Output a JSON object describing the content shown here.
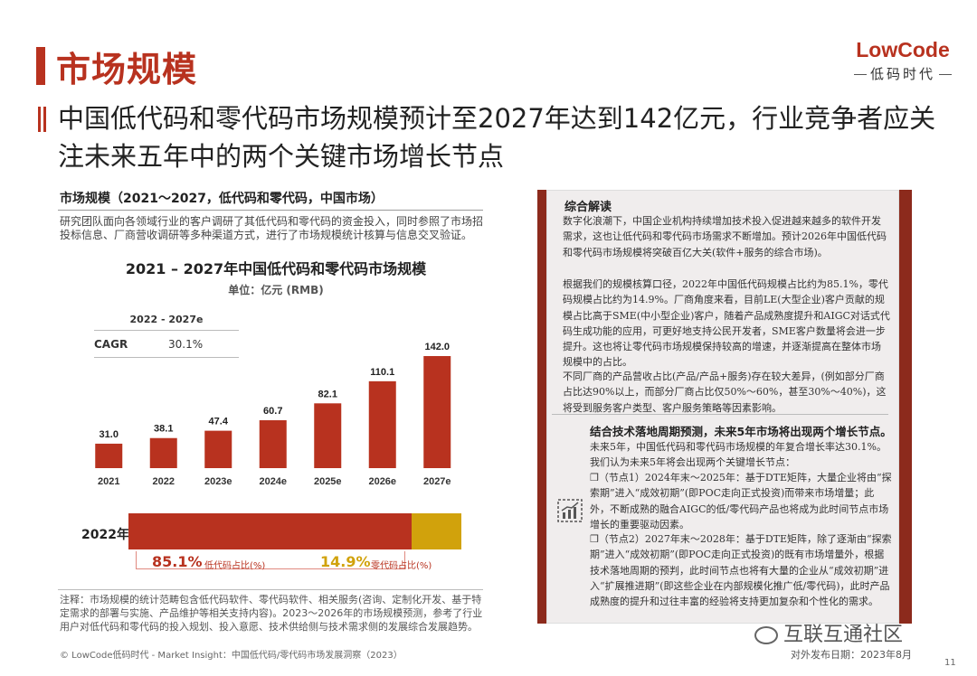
{
  "header": {
    "title": "市场规模",
    "subtitle": "中国低代码和零代码市场规模预计至2027年达到142亿元，行业竞争者应关注未来五年中的两个关键市场增长节点",
    "logo_en": "LowCode",
    "logo_cn": "低码时代"
  },
  "left_panel": {
    "title": "市场规模（2021～2027，低代码和零代码，中国市场）",
    "description": "研究团队面向各领域行业的客户调研了其低代码和零代码的资金投入，同时参照了市场招投标信息、厂商营收调研等多种渠道方式，进行了市场规模统计核算与信息交叉验证。",
    "cagr_period": "2022 - 2027e",
    "cagr_label": "CAGR",
    "cagr_value": "30.1%",
    "note": "注释：市场规模的统计范畴包含低代码软件、零代码软件、相关服务(咨询、定制化开发、基于特定需求的部署与实施、产品维护等相关支持内容)。2023～2026年的市场规模预测，参考了行业用户对低代码和零代码的投入规划、投入意愿、技术供给侧与技术需求侧的发展综合发展趋势。"
  },
  "chart_data": {
    "type": "bar",
    "title": "2021 – 2027年中国低代码和零代码市场规模",
    "subtitle": "单位：亿元 (RMB)",
    "categories": [
      "2021",
      "2022",
      "2023e",
      "2024e",
      "2025e",
      "2026e",
      "2027e"
    ],
    "values": [
      31.0,
      38.1,
      47.4,
      60.7,
      82.1,
      110.1,
      142.0
    ],
    "value_labels": [
      "31.0",
      "38.1",
      "47.4",
      "60.7",
      "82.1",
      "110.1",
      "142.0"
    ],
    "bar_color": "#b8321f"
  },
  "share": {
    "year": "2022年",
    "low_pct": "85.1%",
    "low_value": 85.1,
    "low_label": "低代码占比(%)",
    "zero_pct": "14.9%",
    "zero_value": 14.9,
    "zero_label": "零代码占比(%)",
    "low_color": "#b8321f",
    "zero_color": "#d1a20c"
  },
  "right_panel": {
    "title": "综合解读",
    "p1": "数字化浪潮下，中国企业机构持续增加技术投入促进越来越多的软件开发需求，这也让低代码和零代码市场需求不断增加。预计2026年中国低代码和零代码市场规模将突破百亿大关(软件+服务的综合市场)。",
    "p2": "根据我们的规模核算口径，2022年中国低代码规模占比约为85.1%，零代码规模占比约为14.9%。厂商角度来看，目前LE(大型企业)客户贡献的规模占比高于SME(中小型企业)客户，随着产品成熟度提升和AIGC对话式代码生成功能的应用，可更好地支持公民开发者，SME客户数量将会进一步提升。这也将让零代码市场规模保持较高的增速，并逐渐提高在整体市场规模中的占比。",
    "p3": "不同厂商的产品营收占比(产品/产品+服务)存在较大差异，(例如部分厂商占比达90%以上，而部分厂商占比仅50%～60%，甚至30%～40%)，这将受到服务客户类型、客户服务策略等因素影响。",
    "section_title": "结合技术落地周期预测，未来5年市场将出现两个增长节点。",
    "p4": "未来5年，中国低代码和零代码市场规模的年复合增长率达30.1%。我们认为未来5年将会出现两个关键增长节点：",
    "p5": "❒（节点1）2024年末～2025年：基于DTE矩阵，大量企业将由“探索期”进入“成效初期”(即POC走向正式投资)而带来市场增量；此外，不断成熟的融合AIGC的低/零代码产品也将成为此时间节点市场增长的重要驱动因素。",
    "p6": "❒（节点2）2027年末～2028年：基于DTE矩阵，除了逐渐由“探索期”进入“成效初期”(即POC走向正式投资)的既有市场增量外，根据技术落地周期的预判，此时间节点也将有大量的企业从“成效初期”进入“扩展推进期”(即这些企业在内部规模化推广低/零代码)，此时产品成熟度的提升和过往丰富的经验将支持更加复杂和个性化的需求。"
  },
  "footer": {
    "source": "© LowCode低码时代 - Market Insight：中国低代码/零代码市场发展洞察（2023）",
    "date": "对外发布日期：2023年8月",
    "page": "11",
    "watermark": "互联互通社区"
  }
}
